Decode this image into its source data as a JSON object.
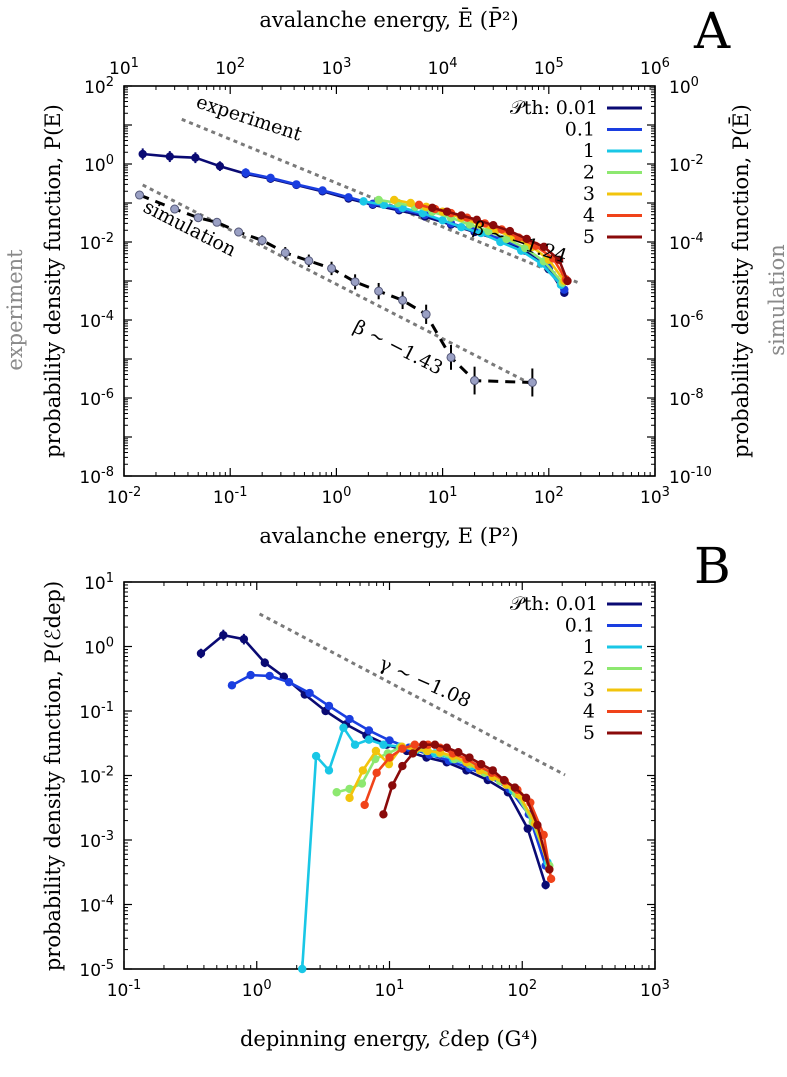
{
  "chart_data": [
    {
      "panel": "A",
      "type": "line",
      "scale": "log-log",
      "xlabel": "avalanche energy, E (P²)",
      "ylabel": "probability density function, P(E)",
      "x2label": "avalanche energy, Ē (P̄²)",
      "y2label": "probability density function, P(Ē)",
      "left_side_note": "experiment",
      "right_side_note": "simulation",
      "xlim": [
        0.01,
        1000
      ],
      "ylim": [
        1e-08,
        100
      ],
      "x2lim": [
        10,
        1000000
      ],
      "y2lim": [
        1e-10,
        1
      ],
      "x_ticks": [
        "10-2",
        "10-1",
        "100",
        "101",
        "102",
        "103"
      ],
      "y_ticks": [
        "10-8",
        "10-6",
        "10-4",
        "10-2",
        "100",
        "102"
      ],
      "x2_ticks": [
        "101",
        "102",
        "103",
        "104",
        "105",
        "106"
      ],
      "y2_ticks": [
        "10-10",
        "10-8",
        "10-6",
        "10-4",
        "10-2",
        "100"
      ],
      "legend_title": "𝒫th:",
      "legend_placement": "top-right",
      "series": [
        {
          "name": "0.01",
          "color": "#0a0a73",
          "x": [
            0.015,
            0.027,
            0.047,
            0.08,
            0.14,
            0.24,
            0.42,
            0.74,
            1.3,
            2.2,
            3.9,
            6.8,
            12,
            20,
            35,
            60,
            100,
            140
          ],
          "y": [
            1.8,
            1.55,
            1.45,
            0.88,
            0.56,
            0.42,
            0.29,
            0.2,
            0.13,
            0.09,
            0.065,
            0.045,
            0.028,
            0.018,
            0.011,
            0.006,
            0.002,
            0.0005
          ]
        },
        {
          "name": "0.1",
          "color": "#1a3ee0",
          "x": [
            0.14,
            0.24,
            0.42,
            0.74,
            1.3,
            2.2,
            3.9,
            6.8,
            12,
            20,
            35,
            60,
            100,
            140
          ],
          "y": [
            0.6,
            0.44,
            0.3,
            0.21,
            0.14,
            0.095,
            0.07,
            0.05,
            0.03,
            0.02,
            0.012,
            0.007,
            0.0025,
            0.0006
          ]
        },
        {
          "name": "1",
          "color": "#19c7e6",
          "x": [
            1.8,
            2.8,
            4.2,
            6.5,
            10,
            15,
            23,
            35,
            55,
            85,
            130
          ],
          "y": [
            0.11,
            0.09,
            0.075,
            0.055,
            0.036,
            0.024,
            0.017,
            0.01,
            0.006,
            0.0028,
            0.0008
          ]
        },
        {
          "name": "2",
          "color": "#8de870",
          "x": [
            2.5,
            3.8,
            5.5,
            8,
            12,
            18,
            27,
            40,
            60,
            90,
            135
          ],
          "y": [
            0.12,
            0.1,
            0.08,
            0.06,
            0.042,
            0.028,
            0.019,
            0.012,
            0.007,
            0.0032,
            0.0009
          ]
        },
        {
          "name": "3",
          "color": "#f2c40c",
          "x": [
            3.5,
            5,
            7,
            10,
            15,
            22,
            32,
            47,
            70,
            100,
            140
          ],
          "y": [
            0.12,
            0.1,
            0.08,
            0.06,
            0.042,
            0.029,
            0.02,
            0.013,
            0.0075,
            0.0035,
            0.001
          ]
        },
        {
          "name": "4",
          "color": "#f0431a",
          "x": [
            6,
            8.5,
            12,
            17,
            25,
            36,
            52,
            75,
            110,
            145
          ],
          "y": [
            0.09,
            0.07,
            0.055,
            0.042,
            0.03,
            0.021,
            0.013,
            0.008,
            0.0038,
            0.0011
          ]
        },
        {
          "name": "5",
          "color": "#8a0a0a",
          "x": [
            8,
            11,
            15,
            21,
            30,
            43,
            62,
            90,
            125,
            150
          ],
          "y": [
            0.075,
            0.06,
            0.048,
            0.037,
            0.027,
            0.019,
            0.012,
            0.0075,
            0.0035,
            0.001
          ]
        },
        {
          "name": "",
          "color": "#000000",
          "dashed": true,
          "axis": "secondary",
          "x": [
            14,
            30,
            50,
            75,
            120,
            200,
            330,
            550,
            900,
            1500,
            2500,
            4200,
            7000,
            12000,
            20000,
            70000
          ],
          "y": [
            0.0016,
            0.0007,
            0.00042,
            0.00032,
            0.00018,
            0.00011,
            5.3e-05,
            3.3e-05,
            2.1e-05,
            9.5e-06,
            5.5e-06,
            3.2e-06,
            1.4e-06,
            1.1e-07,
            2.8e-08,
            2.5e-08
          ]
        }
      ],
      "guide_lines": [
        {
          "label": "experiment",
          "x": [
            0.035,
            190
          ],
          "y": [
            14,
            0.0009
          ]
        },
        {
          "label": "simulation",
          "x": [
            0.015,
            70
          ],
          "y": [
            0.29,
            2.2e-06
          ]
        }
      ],
      "annotations": [
        "β ∼ −1.24",
        "β ∼ −1.43"
      ]
    },
    {
      "panel": "B",
      "type": "line",
      "scale": "log-log",
      "xlabel": "depinning energy, ℰdep (G⁴)",
      "ylabel": "probability density function, P(ℰdep)",
      "xlim": [
        0.1,
        1000
      ],
      "ylim": [
        1e-05,
        10
      ],
      "x_ticks": [
        "10-1",
        "100",
        "101",
        "102",
        "103"
      ],
      "y_ticks": [
        "10-5",
        "10-4",
        "10-3",
        "10-2",
        "10-1",
        "100",
        "101"
      ],
      "legend_title": "𝒫th:",
      "legend_placement": "top-right",
      "series": [
        {
          "name": "0.01",
          "color": "#0a0a73",
          "x": [
            0.38,
            0.56,
            0.8,
            1.15,
            1.6,
            2.3,
            3.3,
            4.7,
            6.7,
            9.5,
            13.5,
            19,
            27,
            38,
            55,
            78,
            110,
            150
          ],
          "y": [
            0.78,
            1.5,
            1.3,
            0.56,
            0.34,
            0.18,
            0.1,
            0.062,
            0.042,
            0.03,
            0.024,
            0.019,
            0.016,
            0.012,
            0.0085,
            0.0055,
            0.0015,
            0.0002
          ]
        },
        {
          "name": "0.1",
          "color": "#1a3ee0",
          "x": [
            0.65,
            0.9,
            1.25,
            1.75,
            2.5,
            3.5,
            5,
            7,
            10,
            14,
            20,
            28,
            40,
            57,
            80,
            112,
            150
          ],
          "y": [
            0.25,
            0.36,
            0.35,
            0.28,
            0.19,
            0.12,
            0.075,
            0.05,
            0.035,
            0.027,
            0.021,
            0.017,
            0.013,
            0.0095,
            0.0062,
            0.0025,
            0.0004
          ]
        },
        {
          "name": "1",
          "color": "#19c7e6",
          "x": [
            2.2,
            2.8,
            3.5,
            4.5,
            5.5,
            7,
            9,
            12,
            16,
            22,
            30,
            42,
            60,
            85,
            120,
            155
          ],
          "y": [
            1e-05,
            0.02,
            0.012,
            0.055,
            0.03,
            0.036,
            0.03,
            0.028,
            0.025,
            0.022,
            0.018,
            0.014,
            0.0095,
            0.0058,
            0.0022,
            0.00045
          ]
        },
        {
          "name": "2",
          "color": "#8de870",
          "x": [
            4,
            5,
            6.2,
            7.8,
            9.7,
            12,
            15,
            19,
            24,
            31,
            40,
            52,
            68,
            90,
            120,
            160
          ],
          "y": [
            0.0055,
            0.0062,
            0.0075,
            0.018,
            0.022,
            0.027,
            0.028,
            0.024,
            0.022,
            0.018,
            0.015,
            0.011,
            0.0082,
            0.0052,
            0.0019,
            0.0004
          ]
        },
        {
          "name": "3",
          "color": "#f2c40c",
          "x": [
            5,
            6.3,
            7.9,
            9.9,
            12.4,
            15.5,
            19.4,
            24,
            30,
            38,
            48,
            60,
            76,
            95,
            125,
            160
          ],
          "y": [
            0.0045,
            0.012,
            0.024,
            0.015,
            0.028,
            0.025,
            0.024,
            0.023,
            0.02,
            0.016,
            0.012,
            0.0095,
            0.0072,
            0.005,
            0.0018,
            0.00035
          ]
        },
        {
          "name": "4",
          "color": "#f0431a",
          "x": [
            6.5,
            8,
            10,
            12.5,
            15.5,
            19.5,
            24,
            30,
            38,
            47,
            59,
            74,
            92,
            115,
            145,
            165
          ],
          "y": [
            0.0035,
            0.011,
            0.019,
            0.026,
            0.03,
            0.03,
            0.027,
            0.022,
            0.018,
            0.014,
            0.011,
            0.0082,
            0.006,
            0.0038,
            0.0012,
            0.00025
          ]
        },
        {
          "name": "5",
          "color": "#8a0a0a",
          "x": [
            9,
            10.5,
            12.5,
            15,
            18,
            22,
            27,
            33,
            40,
            49,
            60,
            73,
            88,
            107,
            130,
            160
          ],
          "y": [
            0.0025,
            0.007,
            0.014,
            0.022,
            0.03,
            0.03,
            0.027,
            0.023,
            0.019,
            0.015,
            0.012,
            0.0085,
            0.0065,
            0.0045,
            0.0017,
            0.00035
          ]
        }
      ],
      "guide_lines": [
        {
          "label": "",
          "x": [
            1.05,
            210
          ],
          "y": [
            3.2,
            0.0102
          ]
        }
      ],
      "annotations": [
        "γ ∼ −1.08"
      ]
    }
  ]
}
